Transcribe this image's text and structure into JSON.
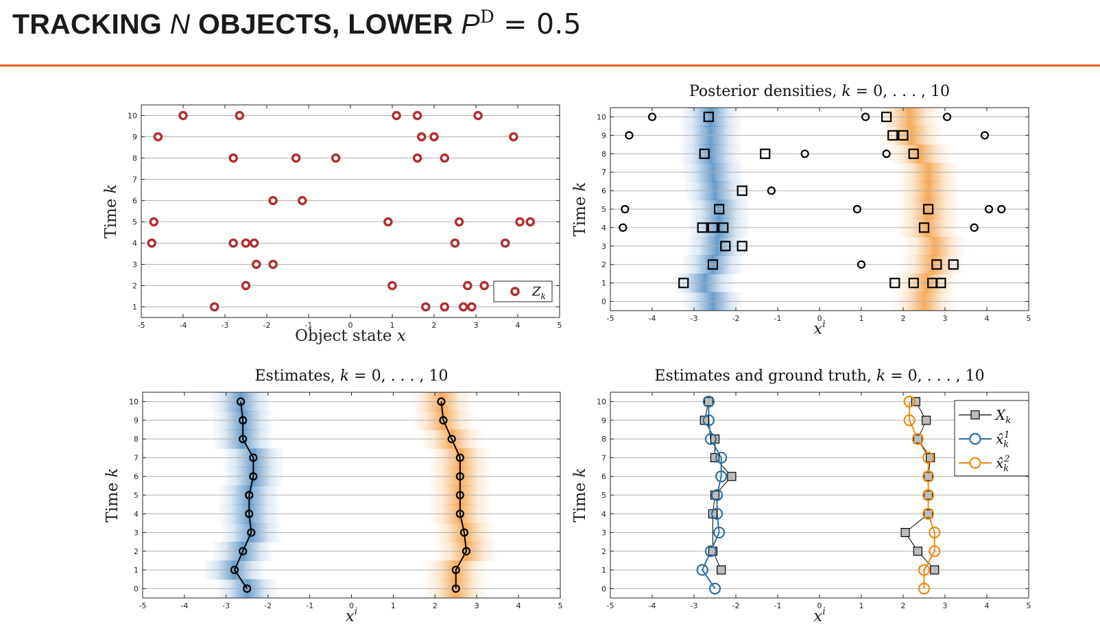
{
  "slide": {
    "title_a": "TRACKING ",
    "title_n": "N",
    "title_b": " OBJECTS, LOWER ",
    "title_p": "P",
    "title_sup": "D",
    "title_eq": " = 0.5",
    "accent_color": "#e0641e"
  },
  "chart_data": [
    {
      "type": "scatter",
      "title": "",
      "xlabel": "Object state x",
      "ylabel": "Time k",
      "xlim": [
        -5,
        5
      ],
      "ylim": [
        0.5,
        10.5
      ],
      "xticks": [
        -5,
        -4,
        -3,
        -2,
        -1,
        0,
        1,
        2,
        3,
        4,
        5
      ],
      "yticks": [
        1,
        2,
        3,
        4,
        5,
        6,
        7,
        8,
        9,
        10
      ],
      "horizontal_grid": true,
      "legend": {
        "position": "bottom-right",
        "entries": [
          "Z_k"
        ]
      },
      "series": [
        {
          "name": "Z_k",
          "marker": "circle",
          "color": "#b03030",
          "points": [
            [
              -4.0,
              10
            ],
            [
              -2.65,
              10
            ],
            [
              1.1,
              10
            ],
            [
              1.6,
              10
            ],
            [
              3.05,
              10
            ],
            [
              -4.6,
              9
            ],
            [
              1.7,
              9
            ],
            [
              2.0,
              9
            ],
            [
              3.9,
              9
            ],
            [
              -2.8,
              8
            ],
            [
              -1.3,
              8
            ],
            [
              -0.35,
              8
            ],
            [
              1.6,
              8
            ],
            [
              2.25,
              8
            ],
            [
              -1.85,
              6
            ],
            [
              -1.15,
              6
            ],
            [
              -4.7,
              5
            ],
            [
              0.9,
              5
            ],
            [
              2.6,
              5
            ],
            [
              4.05,
              5
            ],
            [
              4.3,
              5
            ],
            [
              -4.75,
              4
            ],
            [
              -2.8,
              4
            ],
            [
              -2.5,
              4
            ],
            [
              -2.3,
              4
            ],
            [
              2.5,
              4
            ],
            [
              3.7,
              4
            ],
            [
              -2.25,
              3
            ],
            [
              -1.85,
              3
            ],
            [
              -2.5,
              2
            ],
            [
              1.0,
              2
            ],
            [
              2.8,
              2
            ],
            [
              3.2,
              2
            ],
            [
              -3.25,
              1
            ],
            [
              1.8,
              1
            ],
            [
              2.25,
              1
            ],
            [
              2.7,
              1
            ],
            [
              2.9,
              1
            ]
          ]
        }
      ]
    },
    {
      "type": "scatter",
      "title": "Posterior densities, k = 0, . . . , 10",
      "xlabel": "x^i",
      "ylabel": "Time k",
      "xlim": [
        -5,
        5
      ],
      "ylim": [
        -0.5,
        10.5
      ],
      "xticks": [
        -5,
        -4,
        -3,
        -2,
        -1,
        0,
        1,
        2,
        3,
        4,
        5
      ],
      "yticks": [
        0,
        1,
        2,
        3,
        4,
        5,
        6,
        7,
        8,
        9,
        10
      ],
      "horizontal_grid": true,
      "density_bands": [
        {
          "color": "#2f77b8",
          "centers": [
            -2.55,
            -2.75,
            -2.55,
            -2.45,
            -2.4,
            -2.4,
            -2.5,
            -2.55,
            -2.6,
            -2.6,
            -2.6
          ]
        },
        {
          "color": "#f08c1e",
          "centers": [
            2.5,
            2.55,
            2.7,
            2.75,
            2.6,
            2.6,
            2.6,
            2.6,
            2.4,
            2.2,
            2.15
          ]
        }
      ],
      "series": [
        {
          "name": "",
          "marker": "circle",
          "color": "#000000",
          "points": [
            [
              -4.0,
              10
            ],
            [
              1.1,
              10
            ],
            [
              3.05,
              10
            ],
            [
              -4.55,
              9
            ],
            [
              3.95,
              9
            ],
            [
              -0.35,
              8
            ],
            [
              1.6,
              8
            ],
            [
              -1.15,
              6
            ],
            [
              -4.65,
              5
            ],
            [
              0.9,
              5
            ],
            [
              4.05,
              5
            ],
            [
              4.35,
              5
            ],
            [
              -4.7,
              4
            ],
            [
              3.7,
              4
            ],
            [
              1.0,
              2
            ]
          ]
        },
        {
          "name": "",
          "marker": "square",
          "color": "#000000",
          "points": [
            [
              -2.65,
              10
            ],
            [
              1.6,
              10
            ],
            [
              1.75,
              9
            ],
            [
              2.0,
              9
            ],
            [
              -2.75,
              8
            ],
            [
              -1.3,
              8
            ],
            [
              2.25,
              8
            ],
            [
              -1.85,
              6
            ],
            [
              -2.4,
              5
            ],
            [
              2.6,
              5
            ],
            [
              -2.8,
              4
            ],
            [
              -2.55,
              4
            ],
            [
              -2.3,
              4
            ],
            [
              2.5,
              4
            ],
            [
              -2.25,
              3
            ],
            [
              -1.85,
              3
            ],
            [
              -2.55,
              2
            ],
            [
              2.8,
              2
            ],
            [
              3.2,
              2
            ],
            [
              -3.25,
              1
            ],
            [
              1.8,
              1
            ],
            [
              2.25,
              1
            ],
            [
              2.7,
              1
            ],
            [
              2.9,
              1
            ]
          ]
        }
      ]
    },
    {
      "type": "line",
      "title": "Estimates, k = 0, . . . , 10",
      "xlabel": "x^i",
      "ylabel": "Time k",
      "xlim": [
        -5,
        5
      ],
      "ylim": [
        -0.5,
        10.5
      ],
      "xticks": [
        -5,
        -4,
        -3,
        -2,
        -1,
        0,
        1,
        2,
        3,
        4,
        5
      ],
      "yticks": [
        0,
        1,
        2,
        3,
        4,
        5,
        6,
        7,
        8,
        9,
        10
      ],
      "horizontal_grid": true,
      "density_bands": [
        {
          "color": "#2f77b8",
          "centers": [
            -2.5,
            -2.8,
            -2.6,
            -2.4,
            -2.45,
            -2.45,
            -2.35,
            -2.35,
            -2.6,
            -2.6,
            -2.65
          ]
        },
        {
          "color": "#f08c1e",
          "centers": [
            2.5,
            2.5,
            2.75,
            2.7,
            2.6,
            2.6,
            2.6,
            2.6,
            2.4,
            2.2,
            2.15
          ]
        }
      ],
      "series": [
        {
          "name": "",
          "marker": "circle",
          "color": "#000000",
          "x": [
            -2.5,
            -2.8,
            -2.6,
            -2.4,
            -2.45,
            -2.45,
            -2.35,
            -2.35,
            -2.6,
            -2.6,
            -2.65
          ],
          "y": [
            0,
            1,
            2,
            3,
            4,
            5,
            6,
            7,
            8,
            9,
            10
          ]
        },
        {
          "name": "",
          "marker": "circle",
          "color": "#000000",
          "x": [
            2.5,
            2.5,
            2.75,
            2.7,
            2.6,
            2.6,
            2.6,
            2.6,
            2.4,
            2.2,
            2.15
          ],
          "y": [
            0,
            1,
            2,
            3,
            4,
            5,
            6,
            7,
            8,
            9,
            10
          ]
        }
      ]
    },
    {
      "type": "line",
      "title": "Estimates and ground truth, k = 0, . . . , 10",
      "xlabel": "x^i",
      "ylabel": "Time k",
      "xlim": [
        -5,
        5
      ],
      "ylim": [
        -0.5,
        10.5
      ],
      "xticks": [
        -5,
        -4,
        -3,
        -2,
        -1,
        0,
        1,
        2,
        3,
        4,
        5
      ],
      "yticks": [
        0,
        1,
        2,
        3,
        4,
        5,
        6,
        7,
        8,
        9,
        10
      ],
      "horizontal_grid": true,
      "legend": {
        "position": "top-right",
        "entries": [
          "X_k",
          "x̂_k^1",
          "x̂_k^2"
        ]
      },
      "series": [
        {
          "name": "X_k",
          "marker": "square",
          "color": "#000000",
          "fill": "#bbbbbb",
          "x": [
            -2.35,
            -2.55,
            -2.6,
            -2.5,
            -2.35,
            -2.45,
            -2.1,
            -2.5,
            -2.55,
            -2.75,
            -2.65
          ],
          "y": [
            1,
            2,
            3,
            4,
            5,
            6,
            7,
            8,
            9,
            10,
            10
          ]
        },
        {
          "name": "x̂_k^1",
          "marker": "circle",
          "color": "#2f6ea6",
          "x": [
            -2.5,
            -2.8,
            -2.6,
            -2.4,
            -2.45,
            -2.45,
            -2.35,
            -2.35,
            -2.6,
            -2.65,
            -2.65
          ],
          "y": [
            0,
            1,
            2,
            3,
            4,
            5,
            6,
            7,
            8,
            9,
            10
          ]
        },
        {
          "name": "x̂_k^2",
          "marker": "circle",
          "color": "#ee8a10",
          "x": [
            2.5,
            2.5,
            2.75,
            2.75,
            2.6,
            2.6,
            2.6,
            2.6,
            2.35,
            2.15,
            2.15
          ],
          "y": [
            0,
            1,
            2,
            3,
            4,
            5,
            6,
            7,
            8,
            9,
            10
          ]
        }
      ],
      "ground_truth_points": [
        [
          -2.35,
          1
        ],
        [
          2.75,
          1
        ],
        [
          -2.55,
          2
        ],
        [
          2.35,
          2
        ],
        [
          2.05,
          3
        ],
        [
          -2.55,
          4
        ],
        [
          2.6,
          4
        ],
        [
          -2.5,
          5
        ],
        [
          2.6,
          5
        ],
        [
          -2.1,
          6
        ],
        [
          2.6,
          6
        ],
        [
          -2.5,
          7
        ],
        [
          2.65,
          7
        ],
        [
          -2.5,
          8
        ],
        [
          2.35,
          8
        ],
        [
          -2.75,
          9
        ],
        [
          2.55,
          9
        ],
        [
          -2.65,
          10
        ],
        [
          2.3,
          10
        ]
      ]
    }
  ]
}
